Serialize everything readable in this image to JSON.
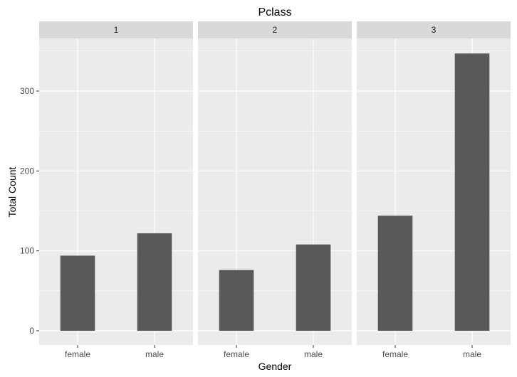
{
  "chart_data": {
    "type": "bar",
    "title": "Pclass",
    "xlabel": "Gender",
    "ylabel": "Total Count",
    "facet_var": "Pclass",
    "categories": [
      "female",
      "male"
    ],
    "y_ticks": [
      0,
      100,
      200,
      300
    ],
    "ylim": [
      0,
      365
    ],
    "grid": true,
    "legend": "none",
    "colors": {
      "bar": "#595959",
      "panel": "#ebebeb",
      "strip": "#d9d9d9",
      "grid": "#ffffff"
    },
    "facets": [
      {
        "label": "1",
        "values": [
          94,
          122
        ]
      },
      {
        "label": "2",
        "values": [
          76,
          108
        ]
      },
      {
        "label": "3",
        "values": [
          144,
          347
        ]
      }
    ]
  }
}
